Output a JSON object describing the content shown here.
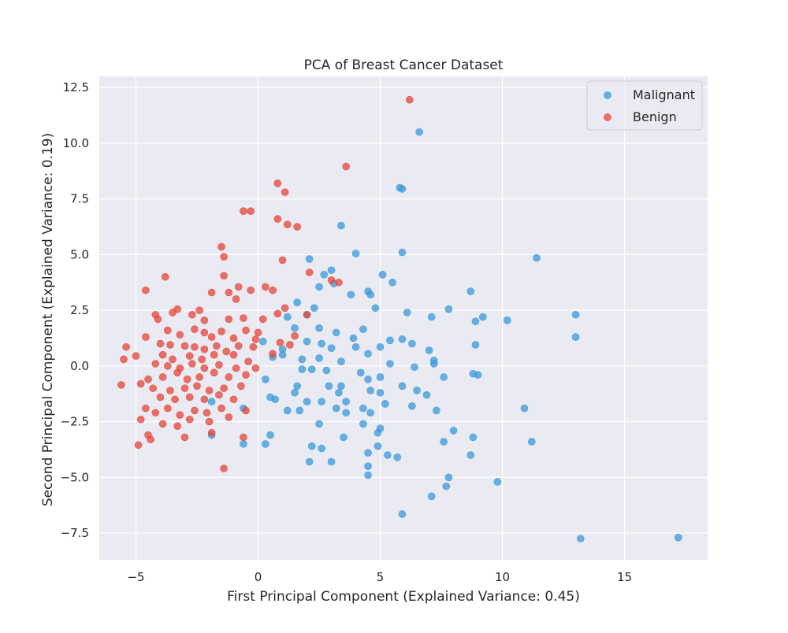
{
  "chart_data": {
    "type": "scatter",
    "title": "PCA of Breast Cancer Dataset",
    "xlabel": "First Principal Component (Explained Variance: 0.45)",
    "ylabel": "Second Principal Component (Explained Variance: 0.19)",
    "xlim": [
      -6.5,
      18.4
    ],
    "ylim": [
      -8.7,
      13.0
    ],
    "xticks": [
      -5,
      0,
      5,
      10,
      15
    ],
    "xtick_labels": [
      "−5",
      "0",
      "5",
      "10",
      "15"
    ],
    "yticks": [
      -7.5,
      -5.0,
      -2.5,
      0.0,
      2.5,
      5.0,
      7.5,
      10.0,
      12.5
    ],
    "ytick_labels": [
      "−7.5",
      "−5.0",
      "−2.5",
      "0.0",
      "2.5",
      "5.0",
      "7.5",
      "10.0",
      "12.5"
    ],
    "grid": true,
    "legend_position": "top-right",
    "series": [
      {
        "name": "Malignant",
        "color": "#3a9ad9",
        "points": [
          [
            6.6,
            10.5
          ],
          [
            5.8,
            8.0
          ],
          [
            5.9,
            7.95
          ],
          [
            3.4,
            6.3
          ],
          [
            4.0,
            5.05
          ],
          [
            5.9,
            5.1
          ],
          [
            11.4,
            4.85
          ],
          [
            2.1,
            4.8
          ],
          [
            3.0,
            4.3
          ],
          [
            2.7,
            4.1
          ],
          [
            5.1,
            4.1
          ],
          [
            5.5,
            3.75
          ],
          [
            8.7,
            3.35
          ],
          [
            4.5,
            3.35
          ],
          [
            4.6,
            3.2
          ],
          [
            3.8,
            3.2
          ],
          [
            2.5,
            3.55
          ],
          [
            1.6,
            2.85
          ],
          [
            3.1,
            3.7
          ],
          [
            4.8,
            2.6
          ],
          [
            7.8,
            2.55
          ],
          [
            2.3,
            2.6
          ],
          [
            1.2,
            2.2
          ],
          [
            2.0,
            2.3
          ],
          [
            6.1,
            2.4
          ],
          [
            7.1,
            2.2
          ],
          [
            9.2,
            2.2
          ],
          [
            10.2,
            2.05
          ],
          [
            8.9,
            2.0
          ],
          [
            13.0,
            2.3
          ],
          [
            1.5,
            1.7
          ],
          [
            2.5,
            1.7
          ],
          [
            3.9,
            1.25
          ],
          [
            4.3,
            1.65
          ],
          [
            3.2,
            1.5
          ],
          [
            5.4,
            1.15
          ],
          [
            5.9,
            1.2
          ],
          [
            6.3,
            1.0
          ],
          [
            2.0,
            1.1
          ],
          [
            2.6,
            1.0
          ],
          [
            3.0,
            0.8
          ],
          [
            0.2,
            1.1
          ],
          [
            1.0,
            0.75
          ],
          [
            4.0,
            0.85
          ],
          [
            4.5,
            0.55
          ],
          [
            5.0,
            0.85
          ],
          [
            7.0,
            0.7
          ],
          [
            8.9,
            0.95
          ],
          [
            13.0,
            1.3
          ],
          [
            1.0,
            0.5
          ],
          [
            2.5,
            0.35
          ],
          [
            0.6,
            0.4
          ],
          [
            1.8,
            0.3
          ],
          [
            3.4,
            0.2
          ],
          [
            5.4,
            0.1
          ],
          [
            7.2,
            0.25
          ],
          [
            7.2,
            0.1
          ],
          [
            6.4,
            -0.05
          ],
          [
            1.8,
            -0.15
          ],
          [
            2.2,
            -0.15
          ],
          [
            2.8,
            -0.2
          ],
          [
            4.2,
            -0.3
          ],
          [
            4.5,
            -0.6
          ],
          [
            5.0,
            -0.5
          ],
          [
            7.6,
            -0.5
          ],
          [
            8.8,
            -0.35
          ],
          [
            9.0,
            -0.4
          ],
          [
            0.3,
            -0.6
          ],
          [
            1.6,
            -0.9
          ],
          [
            2.9,
            -0.9
          ],
          [
            3.4,
            -0.9
          ],
          [
            4.6,
            -1.1
          ],
          [
            5.0,
            -1.2
          ],
          [
            5.9,
            -0.9
          ],
          [
            6.5,
            -1.1
          ],
          [
            6.9,
            -1.3
          ],
          [
            3.3,
            -1.2
          ],
          [
            0.7,
            -1.5
          ],
          [
            1.5,
            -1.2
          ],
          [
            2.0,
            -1.6
          ],
          [
            2.6,
            -1.6
          ],
          [
            3.6,
            -1.6
          ],
          [
            4.3,
            -1.9
          ],
          [
            5.2,
            -1.7
          ],
          [
            6.3,
            -1.8
          ],
          [
            7.3,
            -2.0
          ],
          [
            10.9,
            -1.9
          ],
          [
            -1.9,
            -1.6
          ],
          [
            -0.6,
            -1.9
          ],
          [
            0.5,
            -1.4
          ],
          [
            1.2,
            -2.0
          ],
          [
            1.7,
            -2.0
          ],
          [
            2.5,
            -2.6
          ],
          [
            3.2,
            -1.9
          ],
          [
            3.6,
            -2.1
          ],
          [
            4.3,
            -2.6
          ],
          [
            4.6,
            -2.1
          ],
          [
            5.0,
            -2.8
          ],
          [
            4.9,
            -3.0
          ],
          [
            8.0,
            -2.9
          ],
          [
            8.8,
            -3.2
          ],
          [
            11.2,
            -3.4
          ],
          [
            -1.9,
            -3.1
          ],
          [
            -0.6,
            -3.5
          ],
          [
            0.3,
            -3.5
          ],
          [
            0.5,
            -3.1
          ],
          [
            2.2,
            -3.6
          ],
          [
            2.6,
            -3.7
          ],
          [
            3.5,
            -3.2
          ],
          [
            4.5,
            -3.9
          ],
          [
            4.9,
            -3.6
          ],
          [
            5.3,
            -4.0
          ],
          [
            5.7,
            -4.1
          ],
          [
            7.6,
            -3.4
          ],
          [
            8.7,
            -4.0
          ],
          [
            2.1,
            -4.3
          ],
          [
            3.0,
            -4.3
          ],
          [
            4.5,
            -4.5
          ],
          [
            4.5,
            -4.9
          ],
          [
            7.8,
            -5.0
          ],
          [
            7.7,
            -5.4
          ],
          [
            9.8,
            -5.2
          ],
          [
            7.1,
            -5.85
          ],
          [
            5.9,
            -6.65
          ],
          [
            13.2,
            -7.75
          ],
          [
            17.2,
            -7.7
          ]
        ]
      },
      {
        "name": "Benign",
        "color": "#e5463b",
        "points": [
          [
            6.2,
            11.95
          ],
          [
            3.6,
            8.95
          ],
          [
            0.8,
            8.2
          ],
          [
            1.1,
            7.8
          ],
          [
            -0.6,
            6.95
          ],
          [
            -0.3,
            6.95
          ],
          [
            0.8,
            6.6
          ],
          [
            1.2,
            6.35
          ],
          [
            1.6,
            6.25
          ],
          [
            -1.5,
            5.35
          ],
          [
            -1.4,
            4.9
          ],
          [
            1.0,
            4.75
          ],
          [
            2.1,
            4.2
          ],
          [
            -1.4,
            4.05
          ],
          [
            -3.8,
            4.0
          ],
          [
            -4.6,
            3.4
          ],
          [
            -0.8,
            3.55
          ],
          [
            -0.3,
            3.4
          ],
          [
            0.3,
            3.55
          ],
          [
            0.6,
            3.4
          ],
          [
            3.0,
            3.85
          ],
          [
            3.3,
            3.75
          ],
          [
            -1.9,
            3.3
          ],
          [
            -1.2,
            3.3
          ],
          [
            -4.2,
            2.3
          ],
          [
            -3.3,
            2.55
          ],
          [
            -2.4,
            2.5
          ],
          [
            -0.9,
            3.0
          ],
          [
            0.8,
            2.35
          ],
          [
            1.1,
            2.6
          ],
          [
            2.0,
            2.3
          ],
          [
            -3.5,
            2.4
          ],
          [
            -2.7,
            2.3
          ],
          [
            -2.2,
            2.05
          ],
          [
            -1.2,
            2.1
          ],
          [
            -0.6,
            2.15
          ],
          [
            0.2,
            2.1
          ],
          [
            -4.1,
            2.1
          ],
          [
            -2.6,
            1.65
          ],
          [
            -1.5,
            1.55
          ],
          [
            -0.5,
            1.6
          ],
          [
            0.0,
            1.5
          ],
          [
            1.5,
            1.35
          ],
          [
            -3.7,
            1.6
          ],
          [
            -3.2,
            1.4
          ],
          [
            -2.2,
            1.5
          ],
          [
            -1.9,
            1.3
          ],
          [
            -1.0,
            1.25
          ],
          [
            -0.1,
            1.2
          ],
          [
            0.9,
            1.05
          ],
          [
            1.3,
            0.95
          ],
          [
            -5.4,
            0.85
          ],
          [
            -4.6,
            1.3
          ],
          [
            -4.0,
            1.0
          ],
          [
            -3.6,
            0.95
          ],
          [
            -3.0,
            0.9
          ],
          [
            -2.6,
            0.85
          ],
          [
            -2.2,
            0.75
          ],
          [
            -1.7,
            0.9
          ],
          [
            -1.3,
            0.65
          ],
          [
            -0.8,
            0.9
          ],
          [
            -0.2,
            0.85
          ],
          [
            0.6,
            0.55
          ],
          [
            -5.0,
            0.45
          ],
          [
            -5.5,
            0.3
          ],
          [
            -3.9,
            0.5
          ],
          [
            -3.5,
            0.3
          ],
          [
            -2.8,
            0.45
          ],
          [
            -2.3,
            0.3
          ],
          [
            -1.8,
            0.5
          ],
          [
            -1.0,
            0.5
          ],
          [
            -0.4,
            0.2
          ],
          [
            -4.2,
            0.1
          ],
          [
            -3.7,
            0.0
          ],
          [
            -3.2,
            -0.1
          ],
          [
            -2.7,
            0.1
          ],
          [
            -2.2,
            -0.1
          ],
          [
            -1.6,
            0.05
          ],
          [
            -0.9,
            -0.1
          ],
          [
            -0.1,
            -0.1
          ],
          [
            -4.5,
            -0.6
          ],
          [
            -3.9,
            -0.5
          ],
          [
            -3.3,
            -0.3
          ],
          [
            -2.9,
            -0.6
          ],
          [
            -2.4,
            -0.5
          ],
          [
            -1.8,
            -0.3
          ],
          [
            -1.2,
            -0.5
          ],
          [
            -0.5,
            -0.4
          ],
          [
            -5.6,
            -0.85
          ],
          [
            -4.8,
            -0.8
          ],
          [
            -4.3,
            -1.0
          ],
          [
            -3.6,
            -1.1
          ],
          [
            -3.0,
            -1.0
          ],
          [
            -2.5,
            -0.9
          ],
          [
            -2.0,
            -1.1
          ],
          [
            -1.4,
            -1.0
          ],
          [
            -0.7,
            -0.9
          ],
          [
            -4.0,
            -1.4
          ],
          [
            -3.4,
            -1.5
          ],
          [
            -2.8,
            -1.4
          ],
          [
            -2.2,
            -1.5
          ],
          [
            -1.6,
            -1.3
          ],
          [
            -1.0,
            -1.5
          ],
          [
            -4.6,
            -1.9
          ],
          [
            -4.2,
            -2.1
          ],
          [
            -3.7,
            -1.9
          ],
          [
            -3.2,
            -2.2
          ],
          [
            -2.6,
            -2.0
          ],
          [
            -2.1,
            -2.1
          ],
          [
            -1.5,
            -1.9
          ],
          [
            -0.5,
            -2.0
          ],
          [
            -4.8,
            -2.4
          ],
          [
            -3.9,
            -2.6
          ],
          [
            -3.3,
            -2.7
          ],
          [
            -2.8,
            -2.4
          ],
          [
            -2.0,
            -2.5
          ],
          [
            -1.2,
            -2.3
          ],
          [
            -4.5,
            -3.1
          ],
          [
            -3.0,
            -3.2
          ],
          [
            -1.9,
            -3.0
          ],
          [
            -0.6,
            -3.2
          ],
          [
            -4.9,
            -3.55
          ],
          [
            -4.4,
            -3.3
          ],
          [
            -1.4,
            -4.6
          ]
        ]
      }
    ]
  }
}
